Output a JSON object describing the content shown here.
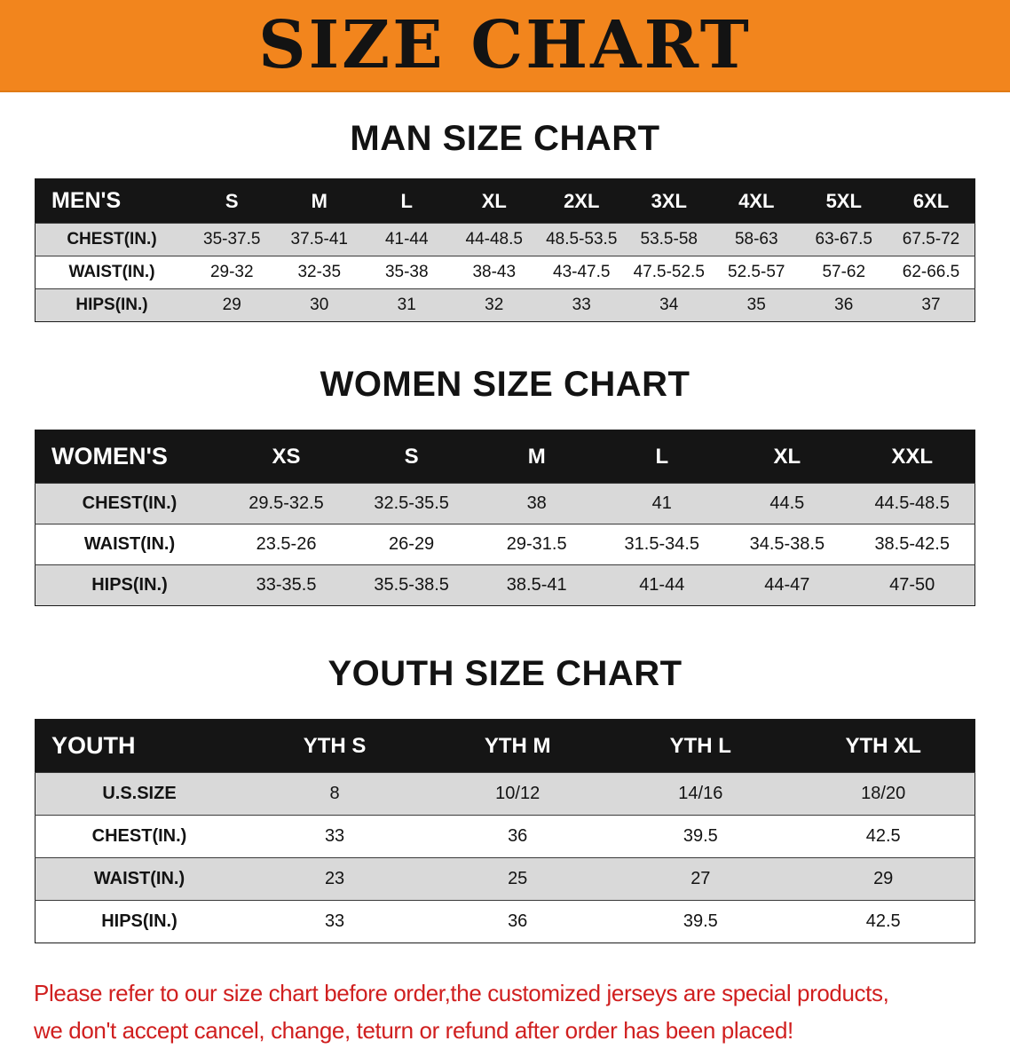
{
  "banner": {
    "title": "SIZE CHART"
  },
  "theme": {
    "banner_bg": "#f2851d",
    "header_bg": "#151515",
    "row_alt": "#d9d9d9",
    "notice_color": "#d01f1f"
  },
  "chart_data": [
    {
      "type": "table",
      "title": "MAN SIZE CHART",
      "columns": [
        "MEN'S",
        "S",
        "M",
        "L",
        "XL",
        "2XL",
        "3XL",
        "4XL",
        "5XL",
        "6XL"
      ],
      "rows": [
        [
          "CHEST(IN.)",
          "35-37.5",
          "37.5-41",
          "41-44",
          "44-48.5",
          "48.5-53.5",
          "53.5-58",
          "58-63",
          "63-67.5",
          "67.5-72"
        ],
        [
          "WAIST(IN.)",
          "29-32",
          "32-35",
          "35-38",
          "38-43",
          "43-47.5",
          "47.5-52.5",
          "52.5-57",
          "57-62",
          "62-66.5"
        ],
        [
          "HIPS(IN.)",
          "29",
          "30",
          "31",
          "32",
          "33",
          "34",
          "35",
          "36",
          "37"
        ]
      ]
    },
    {
      "type": "table",
      "title": "WOMEN SIZE CHART",
      "columns": [
        "WOMEN'S",
        "XS",
        "S",
        "M",
        "L",
        "XL",
        "XXL"
      ],
      "rows": [
        [
          "CHEST(IN.)",
          "29.5-32.5",
          "32.5-35.5",
          "38",
          "41",
          "44.5",
          "44.5-48.5"
        ],
        [
          "WAIST(IN.)",
          "23.5-26",
          "26-29",
          "29-31.5",
          "31.5-34.5",
          "34.5-38.5",
          "38.5-42.5"
        ],
        [
          "HIPS(IN.)",
          "33-35.5",
          "35.5-38.5",
          "38.5-41",
          "41-44",
          "44-47",
          "47-50"
        ]
      ]
    },
    {
      "type": "table",
      "title": "YOUTH SIZE CHART",
      "columns": [
        "YOUTH",
        "YTH S",
        "YTH M",
        "YTH L",
        "YTH XL"
      ],
      "rows": [
        [
          "U.S.SIZE",
          "8",
          "10/12",
          "14/16",
          "18/20"
        ],
        [
          "CHEST(IN.)",
          "33",
          "36",
          "39.5",
          "42.5"
        ],
        [
          "WAIST(IN.)",
          "23",
          "25",
          "27",
          "29"
        ],
        [
          "HIPS(IN.)",
          "33",
          "36",
          "39.5",
          "42.5"
        ]
      ]
    }
  ],
  "footer": {
    "line1": "Please refer to our size chart before order,the customized jerseys are special products,",
    "line2": "we don't accept cancel, change, teturn or refund after order has been placed!"
  }
}
